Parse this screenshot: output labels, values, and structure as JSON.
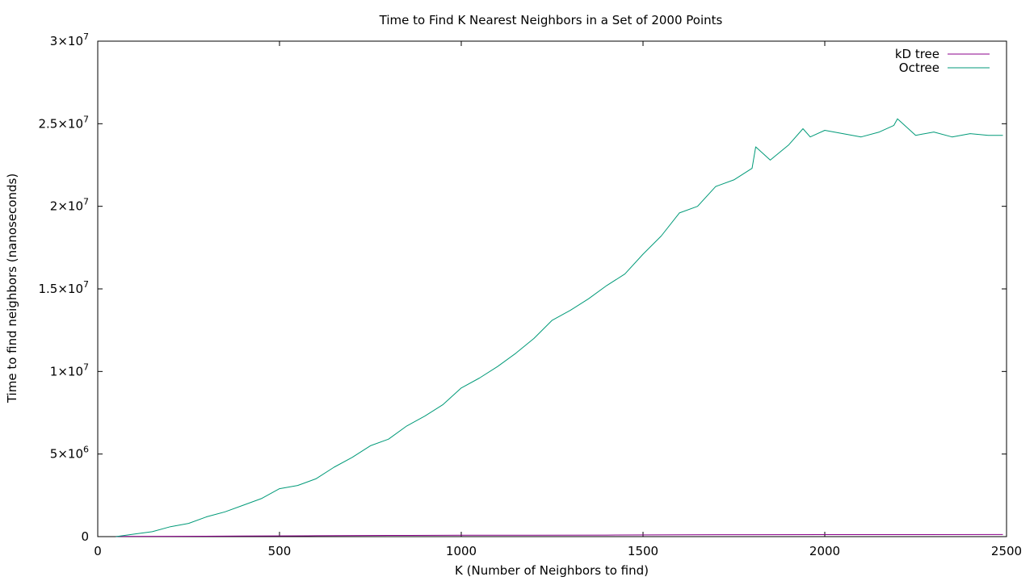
{
  "chart_data": {
    "type": "line",
    "title": "Time to Find K Nearest Neighbors in a Set of 2000 Points",
    "xlabel": "K (Number of Neighbors to find)",
    "ylabel": "Time to find neighbors (nanoseconds)",
    "xlim": [
      0,
      2500
    ],
    "ylim": [
      0,
      30000000
    ],
    "grid": false,
    "legend_position": "top-right",
    "x_ticks": [
      {
        "value": 0,
        "label": "0"
      },
      {
        "value": 500,
        "label": "500"
      },
      {
        "value": 1000,
        "label": "1000"
      },
      {
        "value": 1500,
        "label": "1500"
      },
      {
        "value": 2000,
        "label": "2000"
      },
      {
        "value": 2500,
        "label": "2500"
      }
    ],
    "y_ticks": [
      {
        "value": 0,
        "mantissa": "0",
        "exponent": ""
      },
      {
        "value": 5000000,
        "mantissa": "5×10",
        "exponent": "6"
      },
      {
        "value": 10000000,
        "mantissa": "1×10",
        "exponent": "7"
      },
      {
        "value": 15000000,
        "mantissa": "1.5×10",
        "exponent": "7"
      },
      {
        "value": 20000000,
        "mantissa": "2×10",
        "exponent": "7"
      },
      {
        "value": 25000000,
        "mantissa": "2.5×10",
        "exponent": "7"
      },
      {
        "value": 30000000,
        "mantissa": "3×10",
        "exponent": "7"
      }
    ],
    "series": [
      {
        "name": "kD tree",
        "color": "#8b008b",
        "x": [
          50,
          200,
          400,
          600,
          800,
          1000,
          1200,
          1400,
          1600,
          1800,
          2000,
          2200,
          2490
        ],
        "y": [
          10000,
          20000,
          35000,
          55000,
          75000,
          85000,
          90000,
          95000,
          110000,
          115000,
          120000,
          120000,
          125000
        ]
      },
      {
        "name": "Octree",
        "color": "#009a78",
        "x": [
          50,
          100,
          150,
          200,
          250,
          300,
          350,
          400,
          450,
          500,
          550,
          600,
          650,
          700,
          750,
          800,
          850,
          900,
          950,
          1000,
          1050,
          1100,
          1150,
          1200,
          1250,
          1300,
          1350,
          1400,
          1450,
          1500,
          1550,
          1600,
          1650,
          1700,
          1750,
          1800,
          1810,
          1850,
          1900,
          1940,
          1960,
          2000,
          2050,
          2100,
          2150,
          2190,
          2200,
          2250,
          2300,
          2350,
          2400,
          2450,
          2490
        ],
        "y": [
          0,
          150000,
          300000,
          600000,
          800000,
          1200000,
          1500000,
          1900000,
          2300000,
          2900000,
          3100000,
          3500000,
          4200000,
          4800000,
          5500000,
          5900000,
          6700000,
          7300000,
          8000000,
          9000000,
          9600000,
          10300000,
          11100000,
          12000000,
          13100000,
          13700000,
          14400000,
          15200000,
          15900000,
          17100000,
          18200000,
          19600000,
          20000000,
          21200000,
          21600000,
          22300000,
          23600000,
          22800000,
          23700000,
          24700000,
          24200000,
          24600000,
          24400000,
          24200000,
          24500000,
          24900000,
          25300000,
          24300000,
          24500000,
          24200000,
          24400000,
          24300000,
          24300000
        ]
      }
    ]
  }
}
